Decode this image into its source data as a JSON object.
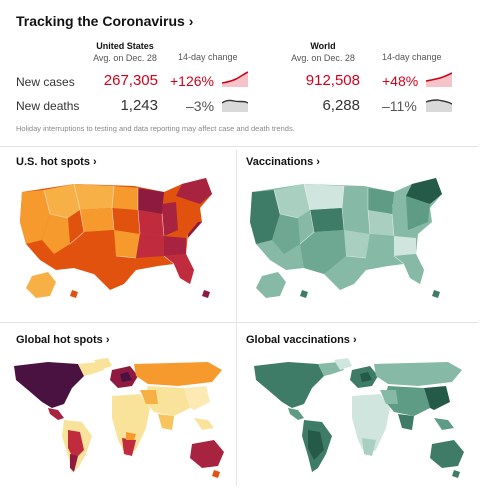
{
  "title": "Tracking the Coronavirus ›",
  "us": {
    "heading": "United States",
    "subheading": "Avg. on Dec. 28",
    "cases": "267,305",
    "cases_change": "+126%",
    "deaths": "1,243",
    "deaths_change": "–3%"
  },
  "world": {
    "heading": "World",
    "subheading": "Avg. on Dec. 28",
    "cases": "912,508",
    "cases_change": "+48%",
    "deaths": "6,288",
    "deaths_change": "–11%"
  },
  "change_label": "14-day change",
  "rows": {
    "cases": "New cases",
    "deaths": "New deaths"
  },
  "note": "Holiday interruptions to testing and data reporting may affect case and death trends.",
  "sections": {
    "us_hotspots": "U.S. hot spots ›",
    "vaccinations": "Vaccinations ›",
    "global_hotspots": "Global hot spots ›",
    "global_vaccinations": "Global vaccinations ›"
  },
  "colors": {
    "accent_red": "#d0021b",
    "hot_low": "#f9e39a",
    "hot_mid": "#f79a2e",
    "hot_high": "#e2520f",
    "hot_peak": "#8e1b3f",
    "hot_max": "#4a1240",
    "vax_light": "#cfe5dd",
    "vax_mid": "#86b9a6",
    "vax_dark": "#3f7c67",
    "vax_darkest": "#255a48"
  }
}
